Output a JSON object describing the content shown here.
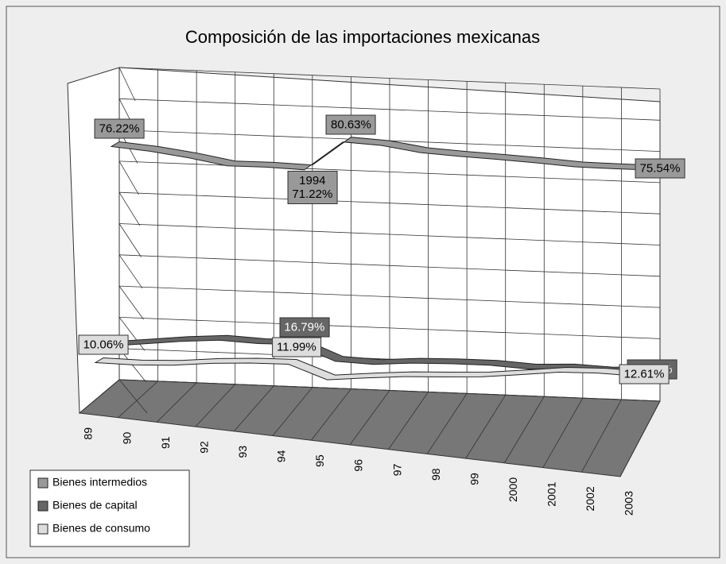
{
  "chart_data": {
    "type": "line3d",
    "title": "Composición de las importaciones mexicanas",
    "categories": [
      "89",
      "90",
      "91",
      "92",
      "93",
      "94",
      "95",
      "96",
      "97",
      "98",
      "99",
      "2000",
      "2001",
      "2002",
      "2003"
    ],
    "ylim": [
      0,
      100
    ],
    "yticks": [
      0,
      10,
      20,
      30,
      40,
      50,
      60,
      70,
      80,
      90,
      100
    ],
    "grid": true,
    "legend": "bottom-left",
    "series": [
      {
        "name": "Bienes intermedios",
        "color": "#999999",
        "values": [
          76.22,
          75.2,
          73.6,
          71.5,
          71.6,
          71.22,
          80.63,
          80.0,
          78.2,
          77.5,
          77.0,
          76.4,
          75.6,
          75.5,
          75.54
        ],
        "value_labels": [
          "76.22%",
          null,
          null,
          null,
          null,
          "1994\n71.22%",
          "80.63%",
          null,
          null,
          null,
          null,
          null,
          null,
          null,
          "75.54%"
        ]
      },
      {
        "name": "Bienes de capital",
        "color": "#666666",
        "values": [
          13.72,
          15.0,
          16.3,
          17.2,
          16.6,
          16.79,
          11.9,
          11.4,
          12.3,
          12.6,
          12.6,
          11.9,
          12.4,
          11.9,
          12.61
        ],
        "value_labels": [
          null,
          null,
          null,
          null,
          null,
          "16.79%",
          null,
          null,
          null,
          null,
          null,
          null,
          null,
          null,
          "12.61%"
        ]
      },
      {
        "name": "Bienes de consumo",
        "color": "#dddddd",
        "values": [
          10.06,
          9.8,
          10.2,
          11.3,
          11.9,
          11.99,
          7.5,
          8.6,
          9.5,
          9.9,
          10.4,
          11.6,
          12.9,
          13.1,
          12.61
        ],
        "value_labels": [
          "10.06%",
          null,
          null,
          null,
          null,
          "11.99%",
          null,
          null,
          null,
          null,
          null,
          null,
          null,
          null,
          "12.61%"
        ]
      }
    ]
  }
}
